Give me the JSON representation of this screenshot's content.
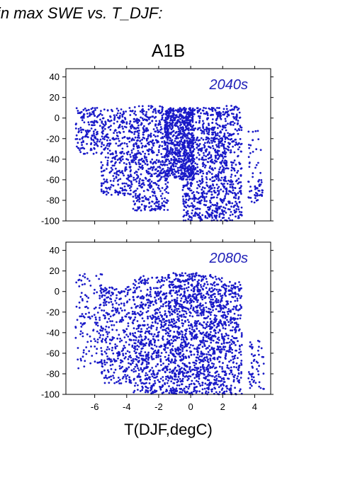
{
  "figure": {
    "header": "in max SWE vs. T_DJF:",
    "scenario_title": "A1B",
    "x_axis_label": "T(DJF,degC)"
  },
  "colors": {
    "points": "#1a1ac8",
    "panel_label": "#2020b8",
    "axis": "#000000"
  },
  "chart_data": [
    {
      "type": "scatter",
      "panel_label": "2040s",
      "xlim": [
        -7.8,
        5.0
      ],
      "ylim": [
        -100,
        48
      ],
      "yticks": [
        40,
        20,
        0,
        -20,
        -40,
        -60,
        -80,
        -100
      ],
      "xticks": [
        -6,
        -4,
        -2,
        0,
        2,
        4
      ],
      "show_xtick_labels": false,
      "clusters": [
        {
          "x": [
            -7.2,
            -5.5
          ],
          "y": [
            -35,
            10
          ],
          "weight": 0.6
        },
        {
          "x": [
            -5.6,
            -3.6
          ],
          "y": [
            -75,
            10
          ],
          "weight": 1.3
        },
        {
          "x": [
            -3.6,
            -1.4
          ],
          "y": [
            -90,
            12
          ],
          "weight": 2.2
        },
        {
          "x": [
            -1.6,
            0.2
          ],
          "y": [
            -60,
            10
          ],
          "weight": 2.4
        },
        {
          "x": [
            -0.5,
            1.3
          ],
          "y": [
            -100,
            10
          ],
          "weight": 2.0
        },
        {
          "x": [
            1.3,
            2.2
          ],
          "y": [
            -100,
            10
          ],
          "weight": 1.2
        },
        {
          "x": [
            2.2,
            3.2
          ],
          "y": [
            -100,
            12
          ],
          "weight": 0.9
        },
        {
          "x": [
            3.6,
            4.4
          ],
          "y": [
            -85,
            -10
          ],
          "weight": 0.15
        },
        {
          "x": [
            4.0,
            4.5
          ],
          "y": [
            -80,
            -60
          ],
          "weight": 0.12
        }
      ]
    },
    {
      "type": "scatter",
      "panel_label": "2080s",
      "xlim": [
        -7.8,
        5.0
      ],
      "ylim": [
        -100,
        48
      ],
      "yticks": [
        40,
        20,
        0,
        -20,
        -40,
        -60,
        -80,
        -100
      ],
      "xticks": [
        -6,
        -4,
        -2,
        0,
        2,
        4
      ],
      "show_xtick_labels": true,
      "clusters": [
        {
          "x": [
            -7.2,
            -5.5
          ],
          "y": [
            -75,
            18
          ],
          "weight": 0.5
        },
        {
          "x": [
            -5.6,
            -3.6
          ],
          "y": [
            -90,
            5
          ],
          "weight": 1.2
        },
        {
          "x": [
            -3.6,
            -1.4
          ],
          "y": [
            -100,
            15
          ],
          "weight": 2.2
        },
        {
          "x": [
            -1.4,
            0.4
          ],
          "y": [
            -100,
            18
          ],
          "weight": 2.5
        },
        {
          "x": [
            0.4,
            2.2
          ],
          "y": [
            -100,
            17
          ],
          "weight": 2.2
        },
        {
          "x": [
            2.2,
            3.2
          ],
          "y": [
            -100,
            10
          ],
          "weight": 0.9
        },
        {
          "x": [
            3.6,
            4.6
          ],
          "y": [
            -95,
            -45
          ],
          "weight": 0.2
        }
      ]
    }
  ]
}
